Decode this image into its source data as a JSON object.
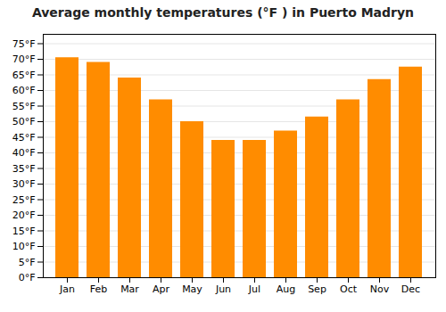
{
  "chart_data": {
    "type": "bar",
    "title": "Average monthly temperatures (°F ) in Puerto Madryn",
    "categories": [
      "Jan",
      "Feb",
      "Mar",
      "Apr",
      "May",
      "Jun",
      "Jul",
      "Aug",
      "Sep",
      "Oct",
      "Nov",
      "Dec"
    ],
    "values": [
      70.5,
      69.0,
      64.0,
      57.0,
      50.0,
      44.0,
      44.0,
      47.0,
      51.5,
      57.0,
      63.5,
      67.5
    ],
    "color": "#FF8C00",
    "ylim": [
      0,
      78
    ],
    "yticks": [
      {
        "value": 0,
        "label": "0°F"
      },
      {
        "value": 5,
        "label": "5°F"
      },
      {
        "value": 10,
        "label": "10°F"
      },
      {
        "value": 15,
        "label": "15°F"
      },
      {
        "value": 20,
        "label": "20°F"
      },
      {
        "value": 25,
        "label": "25°F"
      },
      {
        "value": 30,
        "label": "30°F"
      },
      {
        "value": 35,
        "label": "35°F"
      },
      {
        "value": 40,
        "label": "40°F"
      },
      {
        "value": 45,
        "label": "45°F"
      },
      {
        "value": 50,
        "label": "50°F"
      },
      {
        "value": 55,
        "label": "55°F"
      },
      {
        "value": 60,
        "label": "60°F"
      },
      {
        "value": 65,
        "label": "65°F"
      },
      {
        "value": 70,
        "label": "70°F"
      },
      {
        "value": 75,
        "label": "75°F"
      }
    ],
    "grid": true
  }
}
